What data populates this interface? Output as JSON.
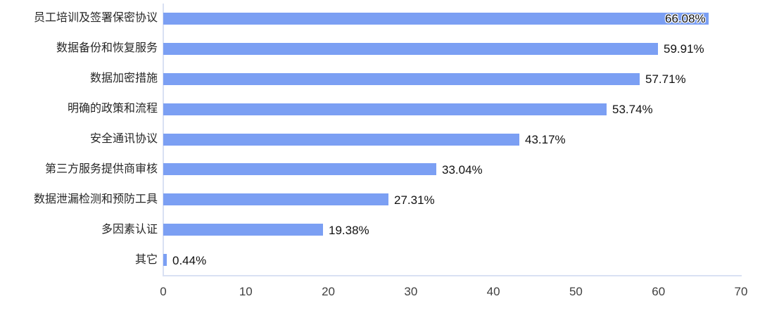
{
  "chart_data": {
    "type": "bar",
    "orientation": "horizontal",
    "title": "",
    "xlabel": "",
    "ylabel": "",
    "categories": [
      "员工培训及签署保密协议",
      "数据备份和恢复服务",
      "数据加密措施",
      "明确的政策和流程",
      "安全通讯协议",
      "第三方服务提供商审核",
      "数据泄漏检测和预防工具",
      "多因素认证",
      "其它"
    ],
    "values": [
      66.08,
      59.91,
      57.71,
      53.74,
      43.17,
      33.04,
      27.31,
      19.38,
      0.44
    ],
    "value_labels": [
      "66.08%",
      "59.91%",
      "57.71%",
      "53.74%",
      "43.17%",
      "33.04%",
      "27.31%",
      "19.38%",
      "0.44%"
    ],
    "x_ticks": [
      "0",
      "10",
      "20",
      "30",
      "40",
      "50",
      "60",
      "70"
    ],
    "xlim": [
      0,
      70
    ],
    "grid": false,
    "legend": "none",
    "bar_color": "#7b9ff3",
    "axis_line_color": "#d9e1f3",
    "category_label_color": "#262626",
    "value_label_color": "#111111",
    "tick_label_color": "#404040"
  }
}
